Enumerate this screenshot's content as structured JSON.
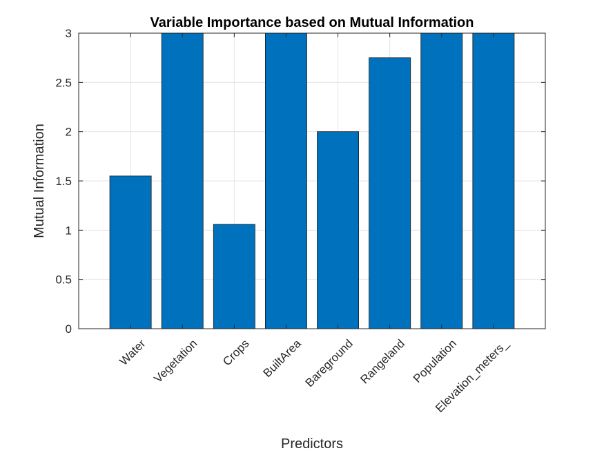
{
  "chart_data": {
    "type": "bar",
    "title": "Variable Importance based on Mutual Information",
    "xlabel": "Predictors",
    "ylabel": "Mutual Information",
    "categories": [
      "Water",
      "Vegetation",
      "Crops",
      "BuiltArea",
      "Bareground",
      "Rangeland",
      "Population",
      "Elevation_meters_"
    ],
    "values": [
      1.55,
      3.0,
      1.06,
      3.0,
      2.0,
      2.75,
      3.0,
      3.0
    ],
    "ylim": [
      0,
      3
    ],
    "yticks": [
      "0",
      "0.5",
      "1",
      "1.5",
      "2",
      "2.5",
      "3"
    ],
    "grid": true,
    "legend": "none",
    "colors": {
      "bar_fill": "#0072BD",
      "bar_edge": "#1a1a1a",
      "grid": "#e5e5e5",
      "axis": "#262626"
    }
  }
}
